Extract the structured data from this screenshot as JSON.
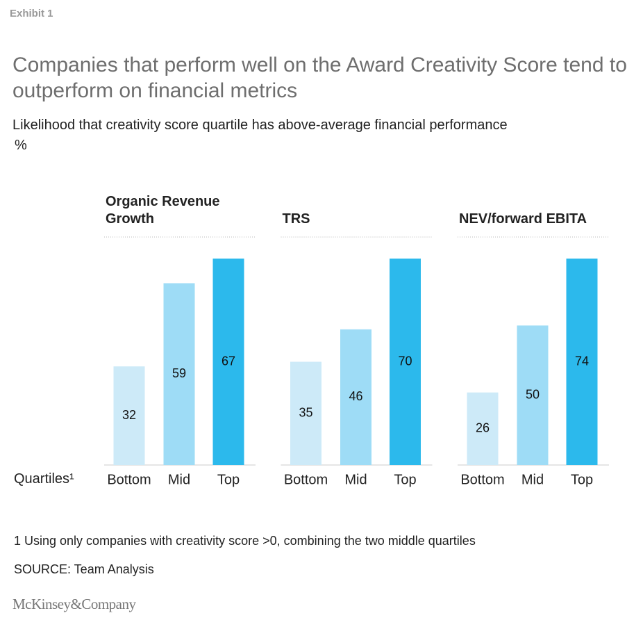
{
  "header": {
    "exhibit": "Exhibit 1",
    "title": "Companies that perform well on the Award Creativity Score tend to outperform on financial metrics",
    "subtitle": "Likelihood that creativity score quartile has above-average financial performance",
    "unit": "%"
  },
  "x_axis_label": "Quartiles¹",
  "chart_data": [
    {
      "type": "bar",
      "title": "Organic Revenue Growth",
      "categories": [
        "Bottom",
        "Mid",
        "Top"
      ],
      "values": [
        32,
        59,
        67
      ],
      "colors": [
        "#cdeaf8",
        "#9edcf6",
        "#2cb9ec"
      ],
      "ylim": [
        0,
        67
      ]
    },
    {
      "type": "bar",
      "title": "TRS",
      "categories": [
        "Bottom",
        "Mid",
        "Top"
      ],
      "values": [
        35,
        46,
        70
      ],
      "colors": [
        "#cdeaf8",
        "#9edcf6",
        "#2cb9ec"
      ],
      "ylim": [
        0,
        70
      ]
    },
    {
      "type": "bar",
      "title": "NEV/forward EBITA",
      "categories": [
        "Bottom",
        "Mid",
        "Top"
      ],
      "values": [
        26,
        50,
        74
      ],
      "colors": [
        "#cdeaf8",
        "#9edcf6",
        "#2cb9ec"
      ],
      "ylim": [
        0,
        74
      ]
    }
  ],
  "footer": {
    "note": "1 Using only companies with creativity score >0, combining the two middle quartiles",
    "source": "SOURCE: Team Analysis",
    "brand": "McKinsey&Company"
  }
}
